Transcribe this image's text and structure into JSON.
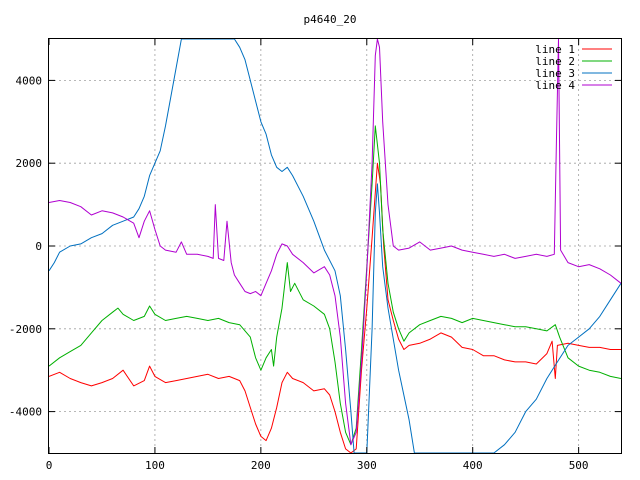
{
  "chart_data": {
    "type": "line",
    "title": "p4640_20",
    "xlabel": "",
    "ylabel": "",
    "xlim": [
      0,
      540
    ],
    "ylim": [
      -5000,
      5000
    ],
    "x_ticks": [
      0,
      100,
      200,
      300,
      400,
      500
    ],
    "y_ticks": [
      -4000,
      -2000,
      0,
      2000,
      4000
    ],
    "grid": true,
    "legend_position": "top-right",
    "series": [
      {
        "name": "line 1",
        "color": "#ff0000",
        "points": [
          [
            0,
            -3150
          ],
          [
            10,
            -3050
          ],
          [
            20,
            -3200
          ],
          [
            30,
            -3300
          ],
          [
            40,
            -3380
          ],
          [
            50,
            -3300
          ],
          [
            60,
            -3200
          ],
          [
            70,
            -3000
          ],
          [
            80,
            -3380
          ],
          [
            90,
            -3250
          ],
          [
            95,
            -2900
          ],
          [
            100,
            -3150
          ],
          [
            110,
            -3300
          ],
          [
            120,
            -3250
          ],
          [
            130,
            -3200
          ],
          [
            140,
            -3150
          ],
          [
            150,
            -3100
          ],
          [
            160,
            -3200
          ],
          [
            170,
            -3150
          ],
          [
            180,
            -3250
          ],
          [
            185,
            -3500
          ],
          [
            190,
            -3900
          ],
          [
            195,
            -4300
          ],
          [
            200,
            -4600
          ],
          [
            205,
            -4700
          ],
          [
            210,
            -4400
          ],
          [
            215,
            -3900
          ],
          [
            220,
            -3300
          ],
          [
            225,
            -3050
          ],
          [
            230,
            -3200
          ],
          [
            240,
            -3300
          ],
          [
            250,
            -3500
          ],
          [
            260,
            -3450
          ],
          [
            265,
            -3600
          ],
          [
            270,
            -4000
          ],
          [
            275,
            -4500
          ],
          [
            280,
            -4900
          ],
          [
            285,
            -5000
          ],
          [
            290,
            -4900
          ],
          [
            295,
            -3000
          ],
          [
            300,
            -1500
          ],
          [
            305,
            200
          ],
          [
            310,
            2000
          ],
          [
            313,
            1500
          ],
          [
            316,
            0
          ],
          [
            320,
            -1300
          ],
          [
            325,
            -1800
          ],
          [
            330,
            -2250
          ],
          [
            335,
            -2500
          ],
          [
            340,
            -2400
          ],
          [
            350,
            -2350
          ],
          [
            360,
            -2250
          ],
          [
            370,
            -2100
          ],
          [
            380,
            -2200
          ],
          [
            390,
            -2450
          ],
          [
            400,
            -2500
          ],
          [
            410,
            -2650
          ],
          [
            420,
            -2650
          ],
          [
            430,
            -2750
          ],
          [
            440,
            -2800
          ],
          [
            450,
            -2800
          ],
          [
            460,
            -2850
          ],
          [
            470,
            -2600
          ],
          [
            475,
            -2300
          ],
          [
            478,
            -3200
          ],
          [
            480,
            -2400
          ],
          [
            490,
            -2350
          ],
          [
            500,
            -2400
          ],
          [
            510,
            -2450
          ],
          [
            520,
            -2450
          ],
          [
            530,
            -2500
          ],
          [
            540,
            -2500
          ]
        ]
      },
      {
        "name": "line 2",
        "color": "#00b000",
        "points": [
          [
            0,
            -2900
          ],
          [
            10,
            -2700
          ],
          [
            20,
            -2550
          ],
          [
            30,
            -2400
          ],
          [
            40,
            -2100
          ],
          [
            50,
            -1800
          ],
          [
            60,
            -1600
          ],
          [
            65,
            -1500
          ],
          [
            70,
            -1650
          ],
          [
            80,
            -1800
          ],
          [
            90,
            -1700
          ],
          [
            95,
            -1450
          ],
          [
            100,
            -1650
          ],
          [
            110,
            -1800
          ],
          [
            120,
            -1750
          ],
          [
            130,
            -1700
          ],
          [
            140,
            -1750
          ],
          [
            150,
            -1800
          ],
          [
            160,
            -1750
          ],
          [
            170,
            -1850
          ],
          [
            180,
            -1900
          ],
          [
            190,
            -2200
          ],
          [
            195,
            -2700
          ],
          [
            200,
            -3000
          ],
          [
            205,
            -2700
          ],
          [
            210,
            -2500
          ],
          [
            212,
            -2900
          ],
          [
            215,
            -2200
          ],
          [
            220,
            -1500
          ],
          [
            225,
            -400
          ],
          [
            228,
            -1100
          ],
          [
            232,
            -900
          ],
          [
            240,
            -1300
          ],
          [
            250,
            -1450
          ],
          [
            260,
            -1650
          ],
          [
            265,
            -2000
          ],
          [
            270,
            -2800
          ],
          [
            275,
            -3800
          ],
          [
            280,
            -4500
          ],
          [
            285,
            -4800
          ],
          [
            290,
            -4400
          ],
          [
            295,
            -2500
          ],
          [
            300,
            -500
          ],
          [
            305,
            1500
          ],
          [
            308,
            2900
          ],
          [
            312,
            2000
          ],
          [
            315,
            400
          ],
          [
            320,
            -900
          ],
          [
            325,
            -1600
          ],
          [
            330,
            -2000
          ],
          [
            335,
            -2300
          ],
          [
            340,
            -2100
          ],
          [
            350,
            -1900
          ],
          [
            360,
            -1800
          ],
          [
            370,
            -1700
          ],
          [
            380,
            -1750
          ],
          [
            390,
            -1850
          ],
          [
            400,
            -1750
          ],
          [
            410,
            -1800
          ],
          [
            420,
            -1850
          ],
          [
            430,
            -1900
          ],
          [
            440,
            -1950
          ],
          [
            450,
            -1950
          ],
          [
            460,
            -2000
          ],
          [
            470,
            -2050
          ],
          [
            478,
            -1900
          ],
          [
            482,
            -2200
          ],
          [
            490,
            -2700
          ],
          [
            500,
            -2900
          ],
          [
            510,
            -3000
          ],
          [
            520,
            -3050
          ],
          [
            530,
            -3150
          ],
          [
            540,
            -3200
          ]
        ]
      },
      {
        "name": "line 3",
        "color": "#0070c0",
        "points": [
          [
            0,
            -600
          ],
          [
            5,
            -400
          ],
          [
            10,
            -150
          ],
          [
            20,
            0
          ],
          [
            30,
            50
          ],
          [
            40,
            200
          ],
          [
            50,
            300
          ],
          [
            60,
            500
          ],
          [
            70,
            600
          ],
          [
            80,
            700
          ],
          [
            85,
            900
          ],
          [
            90,
            1200
          ],
          [
            95,
            1700
          ],
          [
            100,
            2000
          ],
          [
            105,
            2300
          ],
          [
            110,
            2900
          ],
          [
            115,
            3600
          ],
          [
            120,
            4300
          ],
          [
            125,
            5000
          ],
          [
            130,
            5000
          ],
          [
            175,
            5000
          ],
          [
            180,
            4800
          ],
          [
            185,
            4500
          ],
          [
            190,
            4000
          ],
          [
            195,
            3500
          ],
          [
            200,
            3000
          ],
          [
            205,
            2700
          ],
          [
            210,
            2200
          ],
          [
            215,
            1900
          ],
          [
            220,
            1800
          ],
          [
            225,
            1900
          ],
          [
            230,
            1700
          ],
          [
            240,
            1200
          ],
          [
            250,
            600
          ],
          [
            260,
            -100
          ],
          [
            270,
            -600
          ],
          [
            275,
            -1200
          ],
          [
            280,
            -2500
          ],
          [
            285,
            -4000
          ],
          [
            288,
            -5000
          ],
          [
            300,
            -5000
          ],
          [
            305,
            -2000
          ],
          [
            308,
            800
          ],
          [
            310,
            1500
          ],
          [
            312,
            800
          ],
          [
            315,
            -500
          ],
          [
            320,
            -1500
          ],
          [
            330,
            -3000
          ],
          [
            340,
            -4200
          ],
          [
            345,
            -5000
          ],
          [
            420,
            -5000
          ],
          [
            430,
            -4800
          ],
          [
            440,
            -4500
          ],
          [
            450,
            -4000
          ],
          [
            460,
            -3700
          ],
          [
            470,
            -3200
          ],
          [
            480,
            -2800
          ],
          [
            490,
            -2400
          ],
          [
            500,
            -2200
          ],
          [
            510,
            -2000
          ],
          [
            520,
            -1700
          ],
          [
            530,
            -1300
          ],
          [
            540,
            -900
          ]
        ]
      },
      {
        "name": "line 4",
        "color": "#b000d0",
        "points": [
          [
            0,
            1050
          ],
          [
            10,
            1100
          ],
          [
            20,
            1050
          ],
          [
            30,
            950
          ],
          [
            40,
            750
          ],
          [
            50,
            850
          ],
          [
            60,
            800
          ],
          [
            70,
            700
          ],
          [
            80,
            550
          ],
          [
            85,
            200
          ],
          [
            90,
            600
          ],
          [
            95,
            850
          ],
          [
            100,
            400
          ],
          [
            105,
            0
          ],
          [
            110,
            -100
          ],
          [
            120,
            -150
          ],
          [
            125,
            100
          ],
          [
            130,
            -200
          ],
          [
            140,
            -200
          ],
          [
            150,
            -250
          ],
          [
            155,
            -300
          ],
          [
            157,
            1000
          ],
          [
            160,
            -300
          ],
          [
            165,
            -350
          ],
          [
            168,
            600
          ],
          [
            172,
            -400
          ],
          [
            175,
            -700
          ],
          [
            180,
            -900
          ],
          [
            185,
            -1100
          ],
          [
            190,
            -1150
          ],
          [
            195,
            -1100
          ],
          [
            200,
            -1200
          ],
          [
            205,
            -900
          ],
          [
            210,
            -600
          ],
          [
            215,
            -200
          ],
          [
            220,
            50
          ],
          [
            225,
            0
          ],
          [
            230,
            -200
          ],
          [
            240,
            -400
          ],
          [
            250,
            -650
          ],
          [
            260,
            -500
          ],
          [
            265,
            -700
          ],
          [
            270,
            -1200
          ],
          [
            275,
            -2200
          ],
          [
            280,
            -3800
          ],
          [
            285,
            -4800
          ],
          [
            290,
            -4500
          ],
          [
            295,
            -2800
          ],
          [
            300,
            -600
          ],
          [
            305,
            2000
          ],
          [
            308,
            4600
          ],
          [
            310,
            5000
          ],
          [
            312,
            4800
          ],
          [
            315,
            3000
          ],
          [
            320,
            1000
          ],
          [
            325,
            0
          ],
          [
            330,
            -100
          ],
          [
            340,
            -50
          ],
          [
            350,
            100
          ],
          [
            360,
            -100
          ],
          [
            370,
            -50
          ],
          [
            380,
            0
          ],
          [
            390,
            -100
          ],
          [
            400,
            -150
          ],
          [
            410,
            -200
          ],
          [
            420,
            -250
          ],
          [
            430,
            -200
          ],
          [
            440,
            -300
          ],
          [
            450,
            -250
          ],
          [
            460,
            -200
          ],
          [
            470,
            -250
          ],
          [
            477,
            -200
          ],
          [
            479,
            2500
          ],
          [
            481,
            5000
          ],
          [
            483,
            -100
          ],
          [
            490,
            -400
          ],
          [
            500,
            -500
          ],
          [
            510,
            -450
          ],
          [
            520,
            -550
          ],
          [
            530,
            -700
          ],
          [
            540,
            -900
          ]
        ]
      }
    ]
  }
}
